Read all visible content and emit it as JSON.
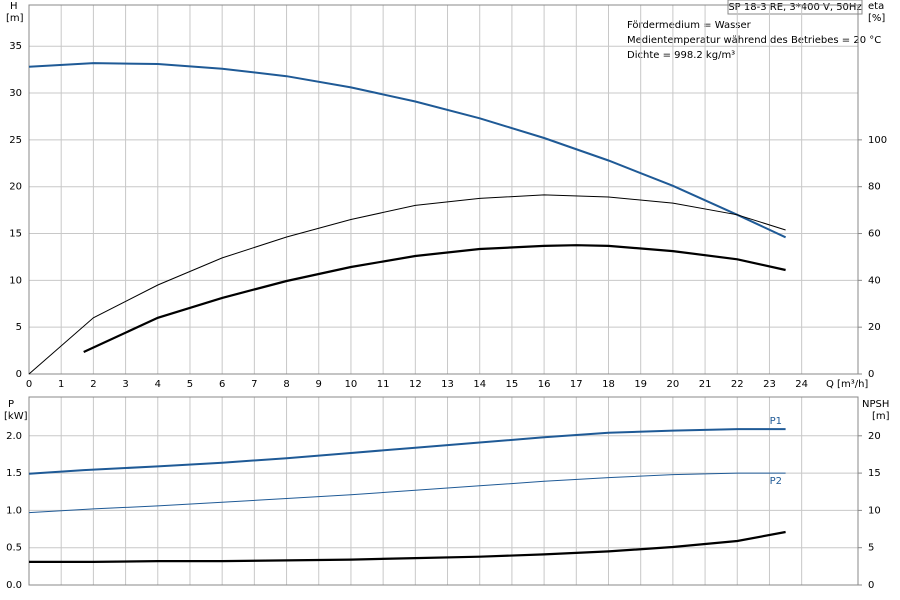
{
  "chart_data": [
    {
      "type": "line",
      "title": "SP 18-3 RE, 3*400 V, 50Hz",
      "annotations": [
        "Fördermedium = Wasser",
        "Medientemperatur während des Betriebes = 20 °C",
        "Dichte = 998.2 kg/m³"
      ],
      "x_label": "Q [m³/h]",
      "y_label": "H",
      "y_unit": "[m]",
      "y2_label": "eta",
      "y2_unit": "[%]",
      "xlim": [
        0,
        25.75
      ],
      "xticks": [
        0,
        1,
        2,
        3,
        4,
        5,
        6,
        7,
        8,
        9,
        10,
        11,
        12,
        13,
        14,
        15,
        16,
        17,
        18,
        19,
        20,
        21,
        22,
        23,
        24
      ],
      "ylim": [
        0,
        39.4
      ],
      "yticks": [
        0,
        5,
        10,
        15,
        20,
        25,
        30,
        35
      ],
      "y2lim": [
        0,
        157.6
      ],
      "y2ticks": [
        0,
        20,
        40,
        60,
        80,
        100
      ],
      "grid": true,
      "series": [
        {
          "color": "#1f5a96",
          "width": 2,
          "x": [
            0,
            2,
            4,
            6,
            8,
            10,
            12,
            14,
            16,
            18,
            20,
            22,
            23.5
          ],
          "values": [
            32.8,
            33.2,
            33.1,
            32.6,
            31.8,
            30.6,
            29.1,
            27.3,
            25.2,
            22.8,
            20.1,
            17.0,
            14.6
          ]
        },
        {
          "color": "#000000",
          "width": 1,
          "axis": "y2",
          "x": [
            0,
            2,
            4,
            6,
            8,
            10,
            12,
            14,
            16,
            18,
            20,
            22,
            23.5
          ],
          "values": [
            0,
            24,
            38,
            49.6,
            58.5,
            66,
            72,
            75,
            76.5,
            75.6,
            73,
            68,
            61.5
          ]
        },
        {
          "color": "#000000",
          "width": 2.2,
          "axis": "y2",
          "x": [
            1.7,
            4,
            6,
            8,
            10,
            12,
            14,
            16,
            17,
            18,
            20,
            22,
            23.5
          ],
          "values": [
            9.4,
            24,
            32.5,
            39.7,
            45.7,
            50.4,
            53.4,
            54.7,
            55,
            54.7,
            52.5,
            49,
            44.4
          ]
        }
      ]
    },
    {
      "type": "line",
      "xlim": [
        0,
        25.75
      ],
      "y_label": "P",
      "y_unit": "[kW]",
      "y2_label": "NPSH",
      "y2_unit": "[m]",
      "ylim": [
        0,
        2.52
      ],
      "yticks": [
        {
          "value": 0,
          "label": "0.0"
        },
        {
          "value": 0.5,
          "label": "0.5"
        },
        {
          "value": 1,
          "label": "1.0"
        },
        {
          "value": 1.5,
          "label": "1.5"
        },
        {
          "value": 2,
          "label": "2.0"
        }
      ],
      "y2lim": [
        0,
        25.2
      ],
      "y2ticks": [
        0,
        5,
        10,
        15,
        20
      ],
      "grid": true,
      "series": [
        {
          "name": "P1",
          "color": "#1f5a96",
          "width": 2,
          "x": [
            0,
            1.7,
            4,
            6,
            8,
            10,
            12,
            14,
            16,
            18,
            20,
            22,
            23.5
          ],
          "values": [
            1.49,
            1.54,
            1.59,
            1.64,
            1.7,
            1.77,
            1.84,
            1.91,
            1.98,
            2.04,
            2.07,
            2.09,
            2.09
          ]
        },
        {
          "name": "P2",
          "color": "#1f5a96",
          "width": 1,
          "x": [
            0,
            2,
            4,
            6,
            8,
            10,
            12,
            14,
            16,
            18,
            20,
            22,
            23.5
          ],
          "values": [
            0.97,
            1.02,
            1.06,
            1.11,
            1.16,
            1.21,
            1.27,
            1.33,
            1.39,
            1.44,
            1.48,
            1.5,
            1.5
          ]
        },
        {
          "color": "#000000",
          "width": 2.2,
          "axis": "y2",
          "x": [
            0,
            2,
            4,
            6,
            8,
            10,
            12,
            14,
            16,
            18,
            20,
            22,
            23.5
          ],
          "values": [
            3.1,
            3.1,
            3.2,
            3.2,
            3.3,
            3.4,
            3.6,
            3.8,
            4.1,
            4.5,
            5.1,
            5.9,
            7.1
          ]
        }
      ]
    }
  ]
}
